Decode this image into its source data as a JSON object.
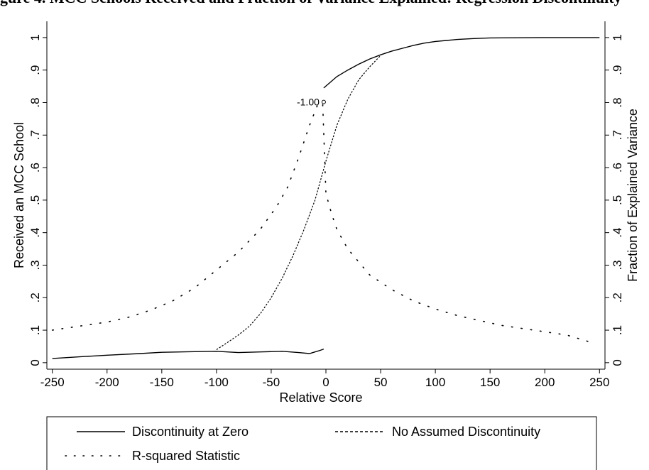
{
  "page": {
    "caption": "gure 4. MCC Schools Received and Fraction of Variance Explained: Regression Discontinuity"
  },
  "chart_data": {
    "type": "line",
    "xlabel": "Relative Score",
    "ylabel": "Received an MCC School",
    "ylabel_right": "Fraction of Explained Variance",
    "xlim": [
      -255,
      255
    ],
    "ylim": [
      -0.02,
      1.05
    ],
    "ylim_right": [
      -0.02,
      1.05
    ],
    "x_ticks": [
      -250,
      -200,
      -150,
      -100,
      -50,
      0,
      50,
      100,
      150,
      200,
      250
    ],
    "x_tick_labels": [
      "-250",
      "-200",
      "-150",
      "-100",
      "-50",
      "0",
      "50",
      "100",
      "150",
      "200",
      "250"
    ],
    "y_ticks": [
      0,
      0.1,
      0.2,
      0.3,
      0.4,
      0.5,
      0.6,
      0.7,
      0.8,
      0.9,
      1
    ],
    "y_tick_labels": [
      "0",
      ".1",
      ".2",
      ".3",
      ".4",
      ".5",
      ".6",
      ".7",
      ".8",
      ".9",
      "1"
    ],
    "grid": false,
    "legend_position": "bottom",
    "colors": {
      "line": "#000000",
      "background": "#ffffff"
    },
    "annotations": [
      {
        "text": "-1.00",
        "x": -2,
        "y": 0.802
      }
    ],
    "series": [
      {
        "name": "Discontinuity at Zero",
        "style": "solid",
        "segments": [
          {
            "x": [
              -250,
              -220,
              -200,
              -170,
              -150,
              -120,
              -100,
              -80,
              -60,
              -40,
              -25,
              -15,
              -10,
              -5,
              -2
            ],
            "y": [
              0.013,
              0.019,
              0.023,
              0.028,
              0.032,
              0.034,
              0.035,
              0.031,
              0.033,
              0.035,
              0.031,
              0.028,
              0.033,
              0.038,
              0.042
            ]
          },
          {
            "x": [
              -2,
              10,
              20,
              30,
              40,
              50,
              60,
              70,
              80,
              90,
              100,
              110,
              120,
              135,
              150,
              200,
              250
            ],
            "y": [
              0.845,
              0.88,
              0.9,
              0.918,
              0.934,
              0.947,
              0.958,
              0.967,
              0.976,
              0.983,
              0.988,
              0.991,
              0.994,
              0.997,
              0.999,
              1.0,
              1.0
            ]
          }
        ]
      },
      {
        "name": "No Assumed Discontinuity",
        "style": "dashed",
        "segments": [
          {
            "x": [
              -100,
              -90,
              -80,
              -70,
              -60,
              -50,
              -40,
              -30,
              -20,
              -10,
              0,
              10,
              20,
              30,
              40,
              50
            ],
            "y": [
              0.04,
              0.062,
              0.085,
              0.112,
              0.15,
              0.2,
              0.26,
              0.33,
              0.41,
              0.5,
              0.62,
              0.73,
              0.81,
              0.87,
              0.91,
              0.945
            ]
          }
        ]
      },
      {
        "name": "R-squared Statistic",
        "style": "dotted",
        "segments": [
          {
            "x": [
              -250,
              -220,
              -200,
              -180,
              -160,
              -140,
              -120,
              -100,
              -80,
              -60,
              -45,
              -35,
              -25,
              -15,
              -8,
              -3,
              0,
              5,
              10,
              20,
              40,
              60,
              80,
              100,
              120,
              140,
              160,
              180,
              200,
              220,
              240
            ],
            "y": [
              0.1,
              0.115,
              0.125,
              0.14,
              0.162,
              0.19,
              0.23,
              0.285,
              0.34,
              0.41,
              0.48,
              0.54,
              0.63,
              0.73,
              0.79,
              0.8,
              0.52,
              0.46,
              0.41,
              0.35,
              0.27,
              0.225,
              0.19,
              0.165,
              0.145,
              0.13,
              0.115,
              0.105,
              0.095,
              0.085,
              0.065
            ]
          }
        ]
      }
    ]
  }
}
